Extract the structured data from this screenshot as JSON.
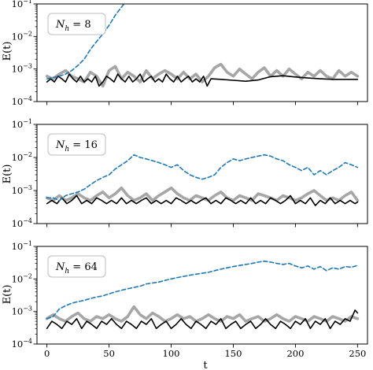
{
  "colors": {
    "dashed": "#1f77b4",
    "gray": "#a6a6a6",
    "black": "#000000"
  },
  "chart_data": [
    {
      "type": "line",
      "panel_label": "N_h = 8",
      "panel_label_parts": [
        "N",
        "h",
        " = 8"
      ],
      "ylabel": "E(t)",
      "xlabel": "",
      "x_ticks": [
        0,
        50,
        100,
        150,
        200,
        250
      ],
      "x_tick_labels": [
        "",
        "",
        "",
        "",
        "",
        ""
      ],
      "xlim": [
        -8,
        258
      ],
      "ylim": [
        0.0001,
        0.1
      ],
      "yscale": "log",
      "y_tick_exponents": [
        "-1",
        "-2",
        "-3",
        "-4"
      ],
      "grid": false,
      "series": [
        {
          "style": "dashed",
          "color": "#1f77b4",
          "x": [
            0,
            5,
            10,
            15,
            20,
            25,
            30,
            35,
            40,
            45,
            50,
            55,
            60,
            62
          ],
          "y": [
            0.0005,
            0.00055,
            0.0006,
            0.0007,
            0.0009,
            0.0013,
            0.002,
            0.004,
            0.007,
            0.012,
            0.022,
            0.045,
            0.08,
            0.1
          ]
        },
        {
          "style": "solid",
          "color": "#a6a6a6",
          "x": [
            0,
            5,
            10,
            15,
            20,
            25,
            30,
            35,
            40,
            45,
            50,
            55,
            60,
            65,
            70,
            75,
            80,
            85,
            90,
            95,
            100,
            105,
            110,
            115,
            120,
            125,
            130,
            135,
            140,
            145,
            150,
            155,
            160,
            165,
            170,
            175,
            180,
            185,
            190,
            195,
            200,
            205,
            210,
            215,
            220,
            225,
            230,
            235,
            240,
            245,
            250
          ],
          "y": [
            0.0006,
            0.0005,
            0.0007,
            0.0009,
            0.0006,
            0.0005,
            0.0004,
            0.0008,
            0.0006,
            0.0003,
            0.0009,
            0.0012,
            0.0005,
            0.0008,
            0.0006,
            0.0004,
            0.0009,
            0.0005,
            0.0007,
            0.0009,
            0.0007,
            0.0005,
            0.0008,
            0.0005,
            0.0007,
            0.0004,
            0.0006,
            0.0011,
            0.0014,
            0.0008,
            0.0006,
            0.001,
            0.0007,
            0.0005,
            0.0008,
            0.0011,
            0.0006,
            0.0009,
            0.0006,
            0.001,
            0.0007,
            0.0005,
            0.0008,
            0.0006,
            0.0009,
            0.0006,
            0.0005,
            0.0009,
            0.0006,
            0.0008,
            0.0006
          ]
        },
        {
          "style": "solid",
          "color": "#000000",
          "x": [
            0,
            3,
            6,
            9,
            12,
            15,
            18,
            21,
            24,
            27,
            30,
            33,
            36,
            39,
            42,
            45,
            48,
            51,
            54,
            57,
            60,
            63,
            66,
            69,
            72,
            75,
            78,
            81,
            84,
            87,
            90,
            93,
            96,
            99,
            102,
            105,
            108,
            111,
            114,
            117,
            120,
            123,
            126,
            129,
            132,
            140,
            150,
            160,
            170,
            180,
            190,
            200,
            210,
            220,
            230,
            240,
            250
          ],
          "y": [
            0.0004,
            0.0005,
            0.0004,
            0.0006,
            0.0005,
            0.0004,
            0.0007,
            0.0005,
            0.0004,
            0.0006,
            0.0004,
            0.0005,
            0.0004,
            0.0006,
            0.0003,
            0.0004,
            0.0006,
            0.0005,
            0.0004,
            0.0007,
            0.0005,
            0.0004,
            0.0006,
            0.0004,
            0.0005,
            0.0007,
            0.0004,
            0.0005,
            0.0006,
            0.0004,
            0.0005,
            0.0004,
            0.0007,
            0.0005,
            0.0004,
            0.0006,
            0.0004,
            0.0005,
            0.0006,
            0.0004,
            0.0005,
            0.0004,
            0.0006,
            0.0003,
            0.0005,
            0.00048,
            0.00045,
            0.00042,
            0.00046,
            0.00058,
            0.00062,
            0.00057,
            0.00053,
            0.0005,
            0.00048,
            0.00048,
            0.00048
          ]
        }
      ]
    },
    {
      "type": "line",
      "panel_label": "N_h = 16",
      "panel_label_parts": [
        "N",
        "h",
        " = 16"
      ],
      "ylabel": "E(t)",
      "xlabel": "",
      "x_ticks": [
        0,
        50,
        100,
        150,
        200,
        250
      ],
      "x_tick_labels": [
        "",
        "",
        "",
        "",
        "",
        ""
      ],
      "xlim": [
        -8,
        258
      ],
      "ylim": [
        0.0001,
        0.1
      ],
      "yscale": "log",
      "y_tick_exponents": [
        "-1",
        "-2",
        "-3",
        "-4"
      ],
      "grid": false,
      "series": [
        {
          "style": "dashed",
          "color": "#1f77b4",
          "x": [
            0,
            5,
            10,
            15,
            20,
            25,
            30,
            35,
            40,
            45,
            50,
            55,
            60,
            65,
            70,
            75,
            80,
            85,
            90,
            95,
            100,
            105,
            110,
            115,
            120,
            125,
            130,
            135,
            140,
            145,
            150,
            155,
            160,
            165,
            170,
            175,
            180,
            185,
            190,
            195,
            200,
            205,
            210,
            215,
            220,
            225,
            230,
            235,
            240,
            245,
            250
          ],
          "y": [
            0.0006,
            0.0006,
            0.0005,
            0.0007,
            0.0008,
            0.0009,
            0.0011,
            0.0015,
            0.002,
            0.0025,
            0.003,
            0.0045,
            0.006,
            0.008,
            0.012,
            0.01,
            0.009,
            0.008,
            0.007,
            0.006,
            0.005,
            0.006,
            0.004,
            0.003,
            0.0025,
            0.0022,
            0.0025,
            0.003,
            0.005,
            0.007,
            0.009,
            0.008,
            0.009,
            0.01,
            0.011,
            0.012,
            0.011,
            0.009,
            0.008,
            0.006,
            0.005,
            0.004,
            0.005,
            0.003,
            0.004,
            0.003,
            0.004,
            0.005,
            0.007,
            0.006,
            0.005
          ]
        },
        {
          "style": "solid",
          "color": "#a6a6a6",
          "x": [
            0,
            5,
            10,
            15,
            20,
            25,
            30,
            35,
            40,
            45,
            50,
            55,
            60,
            65,
            70,
            75,
            80,
            85,
            90,
            95,
            100,
            105,
            110,
            115,
            120,
            125,
            130,
            135,
            140,
            145,
            150,
            155,
            160,
            165,
            170,
            175,
            180,
            185,
            190,
            195,
            200,
            205,
            210,
            215,
            220,
            225,
            230,
            235,
            240,
            245,
            250
          ],
          "y": [
            0.0006,
            0.0005,
            0.0007,
            0.0005,
            0.0006,
            0.0008,
            0.0006,
            0.0005,
            0.0007,
            0.0009,
            0.0006,
            0.0008,
            0.0012,
            0.0007,
            0.0005,
            0.0006,
            0.0008,
            0.0005,
            0.0007,
            0.0009,
            0.0012,
            0.0008,
            0.0006,
            0.0005,
            0.0007,
            0.0006,
            0.0005,
            0.0007,
            0.0009,
            0.0006,
            0.0005,
            0.0007,
            0.0006,
            0.0005,
            0.0008,
            0.0007,
            0.0006,
            0.0005,
            0.0007,
            0.0006,
            0.0005,
            0.0006,
            0.0008,
            0.001,
            0.0007,
            0.0005,
            0.0006,
            0.0005,
            0.0007,
            0.0009,
            0.0005
          ]
        },
        {
          "style": "solid",
          "color": "#000000",
          "x": [
            0,
            4,
            8,
            12,
            16,
            20,
            24,
            28,
            32,
            36,
            40,
            44,
            48,
            52,
            56,
            60,
            64,
            68,
            72,
            76,
            80,
            84,
            88,
            92,
            96,
            100,
            104,
            108,
            112,
            116,
            120,
            124,
            128,
            132,
            136,
            140,
            144,
            148,
            152,
            156,
            160,
            164,
            168,
            172,
            176,
            180,
            184,
            188,
            192,
            196,
            200,
            204,
            208,
            212,
            216,
            220,
            224,
            228,
            232,
            236,
            240,
            244,
            248,
            250
          ],
          "y": [
            0.0004,
            0.0005,
            0.0004,
            0.0006,
            0.0004,
            0.0005,
            0.0007,
            0.0004,
            0.0005,
            0.0004,
            0.0006,
            0.0005,
            0.0004,
            0.0005,
            0.0004,
            0.0006,
            0.0004,
            0.0005,
            0.0004,
            0.0005,
            0.0006,
            0.0004,
            0.0005,
            0.0004,
            0.0005,
            0.0004,
            0.0006,
            0.0005,
            0.0004,
            0.0005,
            0.0004,
            0.0005,
            0.0006,
            0.0004,
            0.0005,
            0.0004,
            0.0006,
            0.0005,
            0.0004,
            0.0005,
            0.0004,
            0.0006,
            0.0004,
            0.0005,
            0.0004,
            0.0006,
            0.0005,
            0.0004,
            0.0005,
            0.0007,
            0.0004,
            0.0005,
            0.0004,
            0.0006,
            0.00035,
            0.0005,
            0.0004,
            0.0006,
            0.0004,
            0.0005,
            0.0004,
            0.0005,
            0.0004,
            0.00045
          ]
        }
      ]
    },
    {
      "type": "line",
      "panel_label": "N_h = 64",
      "panel_label_parts": [
        "N",
        "h",
        " = 64"
      ],
      "ylabel": "E(t)",
      "xlabel": "t",
      "x_ticks": [
        0,
        50,
        100,
        150,
        200,
        250
      ],
      "x_tick_labels": [
        "0",
        "50",
        "100",
        "150",
        "200",
        "250"
      ],
      "xlim": [
        -8,
        258
      ],
      "ylim": [
        0.0001,
        0.1
      ],
      "yscale": "log",
      "y_tick_exponents": [
        "-1",
        "-2",
        "-3",
        "-4"
      ],
      "grid": false,
      "series": [
        {
          "style": "dashed",
          "color": "#1f77b4",
          "x": [
            0,
            5,
            10,
            15,
            20,
            25,
            30,
            35,
            40,
            45,
            50,
            55,
            60,
            65,
            70,
            75,
            80,
            85,
            90,
            95,
            100,
            105,
            110,
            115,
            120,
            125,
            130,
            135,
            140,
            145,
            150,
            155,
            160,
            165,
            170,
            175,
            180,
            185,
            190,
            195,
            200,
            205,
            210,
            215,
            220,
            225,
            230,
            235,
            240,
            245,
            250
          ],
          "y": [
            0.0006,
            0.0007,
            0.0012,
            0.0015,
            0.0018,
            0.002,
            0.0022,
            0.0025,
            0.0028,
            0.003,
            0.0035,
            0.004,
            0.0045,
            0.005,
            0.0055,
            0.006,
            0.007,
            0.0075,
            0.008,
            0.009,
            0.01,
            0.011,
            0.012,
            0.013,
            0.014,
            0.015,
            0.016,
            0.018,
            0.02,
            0.022,
            0.024,
            0.026,
            0.028,
            0.03,
            0.033,
            0.035,
            0.033,
            0.03,
            0.028,
            0.03,
            0.025,
            0.022,
            0.025,
            0.02,
            0.024,
            0.018,
            0.022,
            0.02,
            0.024,
            0.023,
            0.026
          ]
        },
        {
          "style": "solid",
          "color": "#a6a6a6",
          "x": [
            0,
            5,
            10,
            15,
            20,
            25,
            30,
            35,
            40,
            45,
            50,
            55,
            60,
            65,
            70,
            75,
            80,
            85,
            90,
            95,
            100,
            105,
            110,
            115,
            120,
            125,
            130,
            135,
            140,
            145,
            150,
            155,
            160,
            165,
            170,
            175,
            180,
            185,
            190,
            195,
            200,
            205,
            210,
            215,
            220,
            225,
            230,
            235,
            240,
            245,
            250
          ],
          "y": [
            0.0006,
            0.0008,
            0.0006,
            0.0005,
            0.0007,
            0.0009,
            0.0006,
            0.0005,
            0.0007,
            0.0006,
            0.0008,
            0.0006,
            0.0005,
            0.0007,
            0.0014,
            0.0008,
            0.0006,
            0.0009,
            0.0007,
            0.0005,
            0.0006,
            0.0008,
            0.0006,
            0.0007,
            0.0005,
            0.0006,
            0.0008,
            0.0006,
            0.0005,
            0.0007,
            0.0006,
            0.0008,
            0.0005,
            0.0006,
            0.0007,
            0.0005,
            0.0006,
            0.0008,
            0.0006,
            0.0005,
            0.0007,
            0.0006,
            0.0005,
            0.0007,
            0.0006,
            0.0005,
            0.0007,
            0.0006,
            0.0005,
            0.0007,
            0.0006
          ]
        },
        {
          "style": "solid",
          "color": "#000000",
          "x": [
            0,
            4,
            8,
            12,
            16,
            20,
            24,
            28,
            32,
            36,
            40,
            44,
            48,
            52,
            56,
            60,
            64,
            68,
            72,
            76,
            80,
            84,
            88,
            92,
            96,
            100,
            104,
            108,
            112,
            116,
            120,
            124,
            128,
            132,
            136,
            140,
            144,
            148,
            152,
            156,
            160,
            164,
            168,
            172,
            176,
            180,
            184,
            188,
            192,
            196,
            200,
            204,
            208,
            212,
            216,
            220,
            224,
            228,
            232,
            236,
            240,
            244,
            248,
            250
          ],
          "y": [
            0.0003,
            0.0005,
            0.0004,
            0.0003,
            0.0005,
            0.0004,
            0.0006,
            0.0003,
            0.0005,
            0.0004,
            0.0003,
            0.0005,
            0.0004,
            0.0006,
            0.0004,
            0.0003,
            0.0005,
            0.0004,
            0.0003,
            0.0005,
            0.0004,
            0.0006,
            0.0003,
            0.0004,
            0.0005,
            0.0003,
            0.0004,
            0.0006,
            0.0004,
            0.0003,
            0.0005,
            0.0004,
            0.0003,
            0.0005,
            0.0004,
            0.0006,
            0.0003,
            0.0004,
            0.0005,
            0.0003,
            0.0004,
            0.0005,
            0.0003,
            0.0004,
            0.0006,
            0.0004,
            0.0003,
            0.0005,
            0.0004,
            0.0003,
            0.0005,
            0.0004,
            0.0006,
            0.0003,
            0.0005,
            0.0004,
            0.0006,
            0.0003,
            0.0005,
            0.0004,
            0.0006,
            0.0005,
            0.0011,
            0.0009
          ]
        }
      ]
    }
  ]
}
